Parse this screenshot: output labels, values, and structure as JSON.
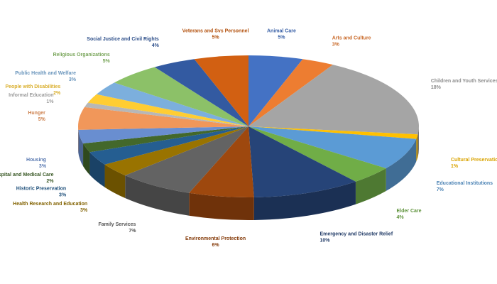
{
  "chart_data": {
    "type": "pie3d",
    "categories": [
      "Animal Care",
      "Arts and Culture",
      "Children and Youth Services",
      "Cultural Preservation",
      "Educational Institutions",
      "Elder Care",
      "Emergency and Disaster Relief",
      "Environmental Protection",
      "Family Services",
      "Health Research and Education",
      "Historic Preservation",
      "Hospital and Medical Care",
      "Housing",
      "Hunger",
      "Informal Education",
      "People with Disabilities",
      "Public Health and Welfare",
      "Religious Organizations",
      "Social Justice and Civil Rights",
      "Veterans and Svs Personnel"
    ],
    "values": [
      5,
      3,
      18,
      1,
      7,
      4,
      10,
      6,
      7,
      3,
      3,
      2,
      3,
      5,
      1,
      2,
      3,
      5,
      4,
      5
    ],
    "value_labels": [
      "5%",
      "3%",
      "18%",
      "1%",
      "7%",
      "4%",
      "10%",
      "6%",
      "7%",
      "3%",
      "3%",
      "2%",
      "3%",
      "5%",
      "1%",
      "2%",
      "3%",
      "5%",
      "4%",
      "5%"
    ],
    "colors": [
      "#4472c4",
      "#ed7d31",
      "#a5a5a5",
      "#ffc000",
      "#5b9bd5",
      "#70ad47",
      "#264478",
      "#9e480e",
      "#636363",
      "#997300",
      "#255e91",
      "#43682b",
      "#698ed0",
      "#f1975a",
      "#b7b7b7",
      "#ffcd33",
      "#7cafdd",
      "#8cc168",
      "#335aa1",
      "#d26012"
    ]
  }
}
